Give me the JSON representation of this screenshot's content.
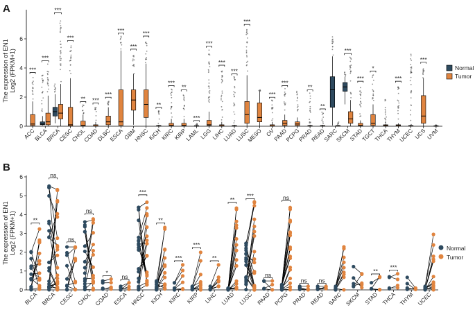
{
  "panels": [
    {
      "label": "A",
      "chart_data": {
        "type": "boxplot",
        "ylabel": "The expression of EN1",
        "ylabel2": "Log2 (FPKM+1)",
        "ylim": [
          0,
          8
        ],
        "yticks": [
          0,
          2,
          4,
          6
        ],
        "legend": {
          "placement": "right",
          "entries": [
            "Normal",
            "Tumor"
          ]
        },
        "colors": {
          "Normal": "#2e4a5f",
          "Tumor": "#e0843f"
        },
        "categories": [
          "ACC",
          "BLCA",
          "BRCA",
          "CESC",
          "CHOL",
          "COAD",
          "DLBC",
          "ESCA",
          "GBM",
          "HNSC",
          "KICH",
          "KIRC",
          "KIRP",
          "LAML",
          "LGG",
          "LIHC",
          "LUAD",
          "LUSC",
          "MESO",
          "OV",
          "PAAD",
          "PCPG",
          "PRAD",
          "READ",
          "SARC",
          "SKCM",
          "STAD",
          "TGCT",
          "THCA",
          "THYM",
          "UCEC",
          "UCS",
          "UVM"
        ],
        "normal": {
          "BLCA": [
            0.05,
            0.1,
            0.15,
            0.3,
            0.7,
            3.6
          ],
          "BRCA": [
            0.2,
            0.7,
            1.0,
            1.3,
            2.2,
            3.0
          ],
          "SARC": [
            0.05,
            1.3,
            2.5,
            3.4,
            4.8,
            6.3
          ],
          "SKCM": [
            1.5,
            2.4,
            2.7,
            3.0,
            3.4,
            3.8
          ]
        },
        "tumor": {
          "ACC": [
            0,
            0.05,
            0.15,
            0.8,
            1.7,
            3.5
          ],
          "BLCA": [
            0,
            0.1,
            0.3,
            0.9,
            2.1,
            4.3
          ],
          "BRCA": [
            0,
            0.5,
            0.9,
            1.5,
            2.9,
            7.6
          ],
          "CESC": [
            0,
            0.02,
            0.1,
            1.3,
            3.3,
            5.7
          ],
          "CHOL": [
            0,
            0.02,
            0.05,
            0.35,
            0.8,
            1.5
          ],
          "COAD": [
            0,
            0.01,
            0.02,
            0.1,
            0.3,
            1.4
          ],
          "DLBC": [
            0,
            0.1,
            0.3,
            0.7,
            1.3,
            1.8
          ],
          "ESCA": [
            0,
            0.05,
            0.3,
            2.5,
            5.2,
            6.2
          ],
          "GBM": [
            0.1,
            1.1,
            1.8,
            2.5,
            3.6,
            5.1
          ],
          "HNSC": [
            0,
            0.6,
            1.5,
            2.5,
            4.3,
            6.0
          ],
          "KICH": [
            0,
            0.01,
            0.02,
            0.05,
            0.1,
            1.1
          ],
          "KIRC": [
            0,
            0.02,
            0.05,
            0.2,
            0.5,
            2.6
          ],
          "KIRP": [
            0,
            0.02,
            0.05,
            0.2,
            0.5,
            2.3
          ],
          "LAML": [
            0,
            0.01,
            0.02,
            0.04,
            0.08,
            0.2
          ],
          "LGG": [
            0,
            0.05,
            0.1,
            0.4,
            1.0,
            5.3
          ],
          "LIHC": [
            0,
            0.01,
            0.03,
            0.1,
            0.3,
            4.0
          ],
          "LUAD": [
            0,
            0.01,
            0.02,
            0.05,
            0.1,
            3.4
          ],
          "LUSC": [
            0,
            0.2,
            0.8,
            1.7,
            3.5,
            6.8
          ],
          "MESO": [
            0,
            0.3,
            0.6,
            1.6,
            2.4,
            2.5
          ],
          "OV": [
            0,
            0.01,
            0.02,
            0.1,
            0.3,
            1.8
          ],
          "PAAD": [
            0,
            0.05,
            0.2,
            0.4,
            0.8,
            2.6
          ],
          "PCPG": [
            0,
            0.05,
            0.15,
            0.3,
            0.6,
            2.4
          ],
          "PRAD": [
            0,
            0.01,
            0.02,
            0.05,
            0.1,
            2.3
          ],
          "READ": [
            0,
            0.01,
            0.02,
            0.05,
            0.1,
            1.0
          ],
          "SARC": [
            0,
            0.01,
            0.02,
            0.05,
            0.1,
            0.3
          ],
          "SKCM": [
            0,
            0.2,
            0.5,
            1.0,
            1.8,
            4.8
          ],
          "STAD": [
            0,
            0.01,
            0.05,
            0.2,
            0.4,
            2.9
          ],
          "TGCT": [
            0,
            0.05,
            0.2,
            0.8,
            1.5,
            3.6
          ],
          "THCA": [
            0,
            0.01,
            0.05,
            0.1,
            0.2,
            2.1
          ],
          "THYM": [
            0,
            0.02,
            0.05,
            0.1,
            0.2,
            2.9
          ],
          "UCEC": [
            0,
            0.01,
            0.02,
            0.05,
            0.1,
            5.0
          ],
          "UCS": [
            0,
            0.2,
            0.7,
            2.1,
            3.3,
            4.2
          ],
          "UVM": [
            0,
            0.01,
            0.02,
            0.03,
            0.05,
            0.1
          ]
        },
        "significance": {
          "ACC": "***",
          "BLCA": "***",
          "BRCA": "***",
          "CESC": "***",
          "CHOL": "**",
          "COAD": "***",
          "DLBC": "***",
          "ESCA": "***",
          "GBM": "***",
          "HNSC": "***",
          "KICH": "**",
          "KIRC": "***",
          "KIRP": "**",
          "LAML": "***",
          "LGG": "***",
          "LIHC": "***",
          "LUAD": "***",
          "LUSC": "***",
          "OV": "***",
          "PAAD": "***",
          "PRAD": "**",
          "READ": "**",
          "SKCM": "***",
          "STAD": "***",
          "TGCT": "*",
          "THYM": "***",
          "UCS": "***"
        }
      }
    },
    {
      "label": "B",
      "chart_data": {
        "type": "paired-dot",
        "ylabel": "The expression of EN1",
        "ylabel2": "Log2 (FPKM+1)",
        "ylim": [
          0,
          6
        ],
        "yticks": [
          0,
          1,
          2,
          3,
          4,
          5,
          6
        ],
        "legend": {
          "placement": "right",
          "entries": [
            "Normal",
            "Tumor"
          ]
        },
        "colors": {
          "Normal": "#2e4a5f",
          "Tumor": "#e0843f"
        },
        "categories": [
          "BLCA",
          "BRCA",
          "CESC",
          "CHOL",
          "COAD",
          "ESCA",
          "HNSC",
          "KICH",
          "KIRC",
          "KIRP",
          "LIHC",
          "LUAD",
          "LUSC",
          "PAAD",
          "PCPG",
          "PRAD",
          "READ",
          "SARC",
          "SKCM",
          "STAD",
          "THCA",
          "THYM",
          "UCEC"
        ],
        "normal_max": [
          2.1,
          5.8,
          2.4,
          3.8,
          0.5,
          0.2,
          4.6,
          0.5,
          0.4,
          0.2,
          0.2,
          0.1,
          2.6,
          0.5,
          0.3,
          0.2,
          0.2,
          0.2,
          1.3,
          0.4,
          0.7,
          0.7,
          0.2
        ],
        "tumor_max": [
          3.4,
          5.6,
          2.4,
          3.9,
          0.6,
          0.4,
          4.9,
          3.4,
          1.4,
          2.1,
          1.4,
          4.5,
          4.7,
          0.5,
          4.6,
          0.2,
          0.2,
          2.3,
          0.9,
          0.7,
          0.9,
          0.1,
          3.1
        ],
        "significance": [
          "**",
          "ns",
          "ns",
          "ns",
          "*",
          "ns",
          "***",
          "**",
          "***",
          "***",
          "**",
          "**",
          "***",
          "ns",
          "ns",
          "ns",
          "ns",
          "",
          "",
          "**",
          "***",
          "",
          ""
        ]
      }
    }
  ]
}
